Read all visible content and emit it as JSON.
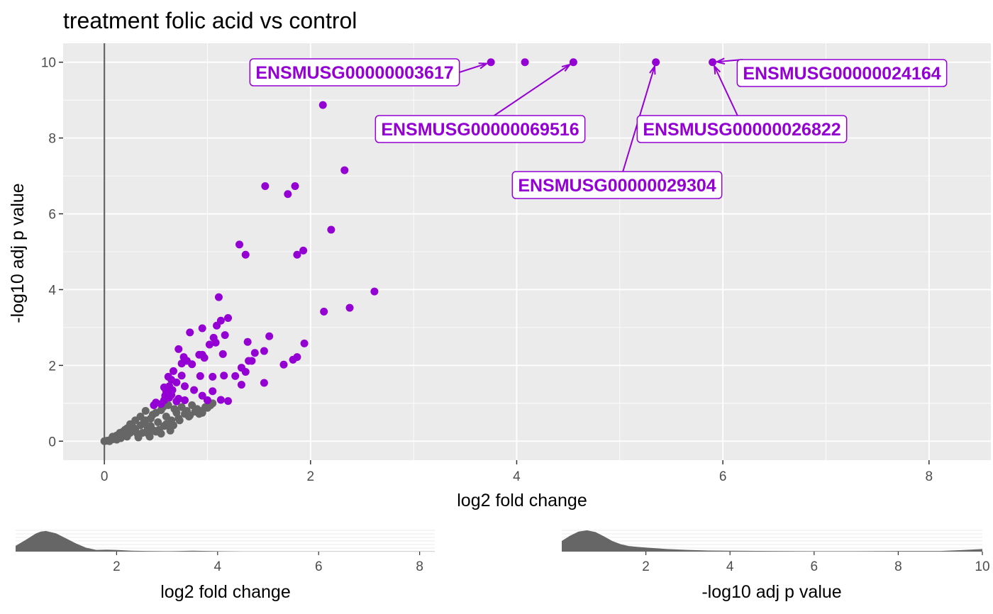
{
  "chart_data": [
    {
      "type": "scatter",
      "title": "treatment folic acid vs control",
      "xlabel": "log2 fold change",
      "ylabel": "-log10 adj p value",
      "xlim": [
        -0.4,
        8.6
      ],
      "ylim": [
        -0.5,
        10.5
      ],
      "x_ticks": [
        0,
        2,
        4,
        6,
        8
      ],
      "y_ticks": [
        0,
        2,
        4,
        6,
        8,
        10
      ],
      "vline_x": 0,
      "grid": true,
      "colors": {
        "significant": "#9400D3",
        "not_significant": "#666666",
        "panel": "#EBEBEB",
        "grid": "#FFFFFF",
        "vline": "#666666"
      },
      "series": [
        {
          "name": "significant",
          "color": "#9400D3",
          "points": [
            [
              3.75,
              10
            ],
            [
              4.08,
              10
            ],
            [
              4.55,
              10
            ],
            [
              5.35,
              10
            ],
            [
              5.9,
              10
            ],
            [
              2.12,
              8.87
            ],
            [
              2.33,
              7.15
            ],
            [
              1.56,
              6.73
            ],
            [
              1.78,
              6.52
            ],
            [
              1.85,
              6.73
            ],
            [
              2.2,
              5.58
            ],
            [
              1.31,
              5.19
            ],
            [
              1.37,
              4.92
            ],
            [
              1.87,
              4.92
            ],
            [
              1.93,
              5.03
            ],
            [
              2.62,
              3.95
            ],
            [
              2.13,
              3.42
            ],
            [
              2.38,
              3.52
            ],
            [
              1.11,
              3.8
            ],
            [
              1.09,
              3.05
            ],
            [
              1.13,
              3.18
            ],
            [
              1.2,
              3.25
            ],
            [
              0.83,
              2.87
            ],
            [
              0.95,
              2.98
            ],
            [
              1.06,
              2.73
            ],
            [
              1.17,
              2.8
            ],
            [
              1.02,
              2.55
            ],
            [
              1.08,
              2.6
            ],
            [
              1.15,
              2.3
            ],
            [
              1.39,
              2.62
            ],
            [
              1.6,
              2.77
            ],
            [
              0.72,
              2.43
            ],
            [
              1.46,
              2.33
            ],
            [
              1.55,
              2.38
            ],
            [
              1.94,
              2.58
            ],
            [
              1.83,
              2.15
            ],
            [
              1.87,
              2.22
            ],
            [
              1.74,
              2.02
            ],
            [
              1.4,
              2.12
            ],
            [
              1.43,
              2.12
            ],
            [
              0.77,
              2.22
            ],
            [
              0.8,
              2.12
            ],
            [
              0.75,
              2.05
            ],
            [
              0.85,
              2.03
            ],
            [
              0.92,
              2.28
            ],
            [
              0.95,
              2.28
            ],
            [
              0.97,
              2.2
            ],
            [
              1.33,
              1.94
            ],
            [
              1.37,
              1.83
            ],
            [
              1.27,
              1.72
            ],
            [
              1.16,
              1.73
            ],
            [
              0.67,
              1.85
            ],
            [
              0.62,
              1.7
            ],
            [
              0.65,
              1.62
            ],
            [
              0.75,
              1.73
            ],
            [
              0.93,
              1.72
            ],
            [
              1.05,
              1.7
            ],
            [
              1.33,
              1.49
            ],
            [
              1.55,
              1.54
            ],
            [
              0.58,
              1.42
            ],
            [
              0.63,
              1.45
            ],
            [
              0.66,
              1.35
            ],
            [
              0.7,
              1.55
            ],
            [
              0.6,
              1.32
            ],
            [
              0.78,
              1.45
            ],
            [
              0.87,
              1.35
            ],
            [
              1.05,
              1.32
            ],
            [
              0.59,
              1.2
            ],
            [
              0.65,
              1.22
            ],
            [
              0.7,
              1.05
            ],
            [
              0.58,
              1.08
            ],
            [
              0.63,
              1.15
            ],
            [
              0.72,
              1.12
            ],
            [
              0.78,
              1.08
            ],
            [
              0.95,
              1.2
            ],
            [
              1.13,
              1.09
            ],
            [
              1.2,
              1.06
            ],
            [
              1.0,
              1.08
            ],
            [
              0.5,
              1.02
            ],
            [
              0.55,
              0.98
            ],
            [
              0.48,
              0.95
            ]
          ]
        },
        {
          "name": "not significant",
          "color": "#666666",
          "points": [
            [
              0,
              0
            ],
            [
              0.02,
              0.01
            ],
            [
              0.04,
              0.02
            ],
            [
              0.06,
              0.03
            ],
            [
              0.05,
              0.0
            ],
            [
              0.08,
              0.05
            ],
            [
              0.1,
              0.06
            ],
            [
              0.12,
              0.04
            ],
            [
              0.14,
              0.1
            ],
            [
              0.1,
              0.12
            ],
            [
              0.16,
              0.08
            ],
            [
              0.18,
              0.14
            ],
            [
              0.2,
              0.18
            ],
            [
              0.22,
              0.12
            ],
            [
              0.25,
              0.22
            ],
            [
              0.27,
              0.28
            ],
            [
              0.3,
              0.3
            ],
            [
              0.18,
              0.25
            ],
            [
              0.22,
              0.34
            ],
            [
              0.28,
              0.36
            ],
            [
              0.32,
              0.2
            ],
            [
              0.35,
              0.42
            ],
            [
              0.38,
              0.48
            ],
            [
              0.4,
              0.55
            ],
            [
              0.42,
              0.35
            ],
            [
              0.45,
              0.6
            ],
            [
              0.47,
              0.7
            ],
            [
              0.5,
              0.75
            ],
            [
              0.52,
              0.5
            ],
            [
              0.55,
              0.82
            ],
            [
              0.57,
              0.9
            ],
            [
              0.6,
              0.65
            ],
            [
              0.62,
              0.95
            ],
            [
              0.65,
              0.55
            ],
            [
              0.68,
              0.85
            ],
            [
              0.7,
              0.75
            ],
            [
              0.72,
              0.6
            ],
            [
              0.75,
              0.9
            ],
            [
              0.78,
              0.72
            ],
            [
              0.8,
              0.8
            ],
            [
              0.83,
              0.68
            ],
            [
              0.85,
              0.95
            ],
            [
              0.88,
              0.78
            ],
            [
              0.9,
              0.85
            ],
            [
              0.93,
              0.8
            ],
            [
              0.95,
              0.75
            ],
            [
              0.98,
              0.9
            ],
            [
              1.0,
              0.88
            ],
            [
              1.03,
              0.95
            ],
            [
              1.05,
              1.0
            ],
            [
              0.33,
              0.1
            ],
            [
              0.37,
              0.22
            ],
            [
              0.43,
              0.18
            ],
            [
              0.48,
              0.28
            ],
            [
              0.53,
              0.3
            ],
            [
              0.58,
              0.4
            ],
            [
              0.63,
              0.38
            ],
            [
              0.67,
              0.42
            ],
            [
              0.73,
              0.55
            ],
            [
              0.4,
              0.8
            ],
            [
              0.35,
              0.65
            ],
            [
              0.3,
              0.55
            ],
            [
              0.45,
              0.4
            ],
            [
              0.5,
              0.25
            ],
            [
              0.55,
              0.2
            ],
            [
              0.6,
              0.45
            ],
            [
              0.25,
              0.45
            ],
            [
              0.2,
              0.3
            ],
            [
              0.15,
              0.22
            ],
            [
              0.12,
              0.15
            ],
            [
              0.08,
              0.12
            ],
            [
              0.44,
              0.12
            ],
            [
              0.64,
              0.28
            ],
            [
              0.82,
              0.65
            ],
            [
              0.92,
              0.72
            ]
          ]
        }
      ],
      "annotations": [
        {
          "text": "ENSMUSG00000003617",
          "x": 3.75,
          "y": 10
        },
        {
          "text": "ENSMUSG00000069516",
          "x": 4.55,
          "y": 10
        },
        {
          "text": "ENSMUSG00000029304",
          "x": 5.35,
          "y": 10
        },
        {
          "text": "ENSMUSG00000026822",
          "x": 5.9,
          "y": 10
        },
        {
          "text": "ENSMUSG00000024164",
          "x": 5.9,
          "y": 10
        }
      ]
    },
    {
      "type": "area",
      "title": "",
      "xlabel": "log2 fold change",
      "ylabel": "",
      "xlim": [
        0,
        8.3
      ],
      "ylim": [
        0,
        1
      ],
      "x_ticks": [
        2,
        4,
        6,
        8
      ],
      "color": "#666666",
      "x": [
        0.0,
        0.2,
        0.4,
        0.5,
        0.6,
        0.8,
        1.0,
        1.2,
        1.4,
        1.6,
        1.8,
        2.0,
        2.3,
        2.6,
        3.0,
        3.5,
        4.0,
        4.5,
        5.0,
        5.5,
        6.0,
        6.5,
        7.0,
        7.5,
        8.0,
        8.3
      ],
      "values": [
        0.27,
        0.55,
        0.85,
        0.94,
        0.97,
        0.86,
        0.62,
        0.38,
        0.18,
        0.08,
        0.09,
        0.08,
        0.04,
        0.03,
        0.02,
        0.04,
        0.02,
        0.01,
        0.01,
        0.01,
        0.01,
        0.01,
        0.01,
        0.01,
        0.01,
        0.01
      ]
    },
    {
      "type": "area",
      "title": "",
      "xlabel": "-log10 adj p value",
      "ylabel": "",
      "xlim": [
        0,
        10
      ],
      "ylim": [
        0,
        1
      ],
      "x_ticks": [
        2,
        4,
        6,
        8,
        10
      ],
      "color": "#666666",
      "x": [
        0.0,
        0.2,
        0.4,
        0.6,
        0.8,
        1.0,
        1.2,
        1.4,
        1.6,
        1.8,
        2.0,
        2.5,
        3.0,
        3.5,
        4.0,
        5.0,
        6.0,
        7.0,
        8.0,
        9.0,
        9.5,
        10.0
      ],
      "values": [
        0.5,
        0.75,
        0.94,
        1.0,
        0.92,
        0.72,
        0.5,
        0.35,
        0.26,
        0.22,
        0.19,
        0.12,
        0.08,
        0.05,
        0.04,
        0.03,
        0.02,
        0.02,
        0.03,
        0.03,
        0.07,
        0.12
      ]
    }
  ]
}
